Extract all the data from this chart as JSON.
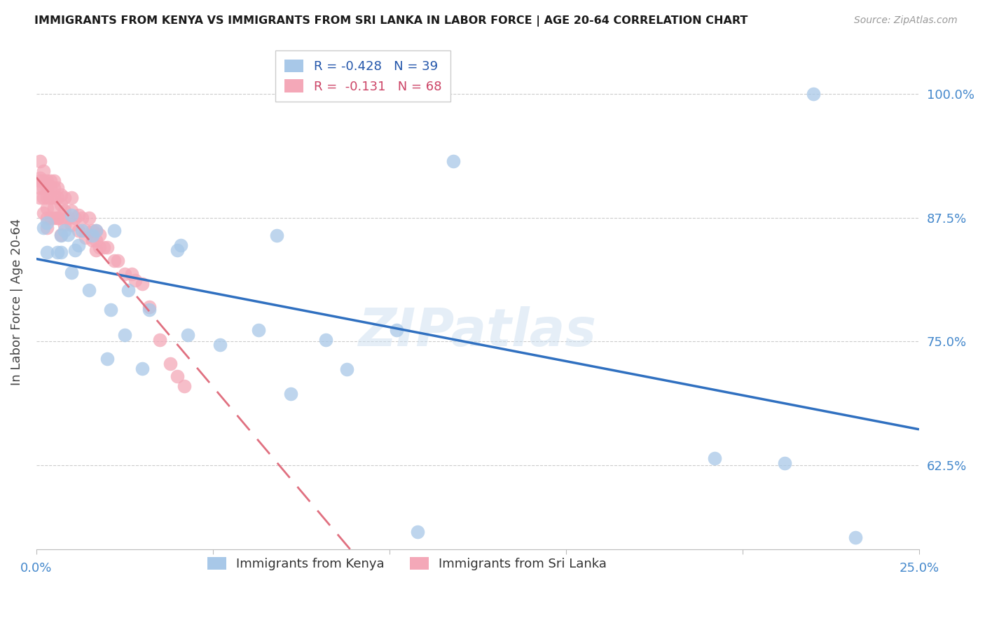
{
  "title": "IMMIGRANTS FROM KENYA VS IMMIGRANTS FROM SRI LANKA IN LABOR FORCE | AGE 20-64 CORRELATION CHART",
  "source": "Source: ZipAtlas.com",
  "ylabel": "In Labor Force | Age 20-64",
  "xlim": [
    0.0,
    0.25
  ],
  "ylim": [
    0.54,
    1.04
  ],
  "kenya_R": "-0.428",
  "kenya_N": "39",
  "srilanka_R": "-0.131",
  "srilanka_N": "68",
  "kenya_color": "#a8c8e8",
  "srilanka_color": "#f4a8b8",
  "kenya_line_color": "#3070c0",
  "srilanka_line_color": "#e07080",
  "watermark": "ZIPatlas",
  "yticks": [
    1.0,
    0.875,
    0.75,
    0.625
  ],
  "ytick_labels": [
    "100.0%",
    "87.5%",
    "75.0%",
    "62.5%"
  ],
  "xticks": [
    0.0,
    0.05,
    0.1,
    0.15,
    0.2,
    0.25
  ],
  "xtick_labels": [
    "0.0%",
    "",
    "",
    "",
    "",
    "25.0%"
  ],
  "kenya_x": [
    0.002,
    0.003,
    0.003,
    0.006,
    0.007,
    0.007,
    0.008,
    0.009,
    0.01,
    0.01,
    0.011,
    0.012,
    0.013,
    0.015,
    0.016,
    0.017,
    0.02,
    0.021,
    0.022,
    0.025,
    0.026,
    0.03,
    0.032,
    0.04,
    0.041,
    0.043,
    0.052,
    0.063,
    0.068,
    0.072,
    0.082,
    0.088,
    0.102,
    0.108,
    0.118,
    0.192,
    0.212,
    0.22,
    0.232
  ],
  "kenya_y": [
    0.865,
    0.84,
    0.87,
    0.84,
    0.84,
    0.857,
    0.862,
    0.858,
    0.878,
    0.82,
    0.842,
    0.847,
    0.862,
    0.802,
    0.857,
    0.862,
    0.733,
    0.782,
    0.862,
    0.757,
    0.802,
    0.723,
    0.782,
    0.842,
    0.847,
    0.757,
    0.747,
    0.762,
    0.857,
    0.697,
    0.752,
    0.722,
    0.762,
    0.558,
    0.932,
    0.632,
    0.627,
    1.0,
    0.552
  ],
  "srilanka_x": [
    0.001,
    0.001,
    0.001,
    0.001,
    0.001,
    0.002,
    0.002,
    0.002,
    0.002,
    0.002,
    0.003,
    0.003,
    0.003,
    0.003,
    0.003,
    0.003,
    0.003,
    0.004,
    0.004,
    0.004,
    0.004,
    0.005,
    0.005,
    0.005,
    0.005,
    0.005,
    0.006,
    0.006,
    0.006,
    0.006,
    0.007,
    0.007,
    0.007,
    0.007,
    0.008,
    0.008,
    0.008,
    0.009,
    0.01,
    0.01,
    0.01,
    0.011,
    0.012,
    0.012,
    0.013,
    0.014,
    0.014,
    0.015,
    0.016,
    0.016,
    0.017,
    0.017,
    0.017,
    0.018,
    0.018,
    0.019,
    0.02,
    0.022,
    0.023,
    0.025,
    0.027,
    0.028,
    0.03,
    0.032,
    0.035,
    0.038,
    0.04,
    0.042
  ],
  "srilanka_y": [
    0.932,
    0.915,
    0.912,
    0.905,
    0.895,
    0.922,
    0.912,
    0.905,
    0.895,
    0.88,
    0.912,
    0.908,
    0.905,
    0.895,
    0.885,
    0.875,
    0.865,
    0.912,
    0.905,
    0.895,
    0.875,
    0.912,
    0.905,
    0.895,
    0.885,
    0.875,
    0.875,
    0.905,
    0.895,
    0.875,
    0.898,
    0.888,
    0.875,
    0.858,
    0.895,
    0.882,
    0.868,
    0.875,
    0.895,
    0.882,
    0.868,
    0.875,
    0.878,
    0.862,
    0.875,
    0.862,
    0.855,
    0.875,
    0.862,
    0.852,
    0.862,
    0.852,
    0.842,
    0.858,
    0.845,
    0.845,
    0.845,
    0.832,
    0.832,
    0.818,
    0.818,
    0.812,
    0.808,
    0.785,
    0.752,
    0.728,
    0.715,
    0.705
  ]
}
